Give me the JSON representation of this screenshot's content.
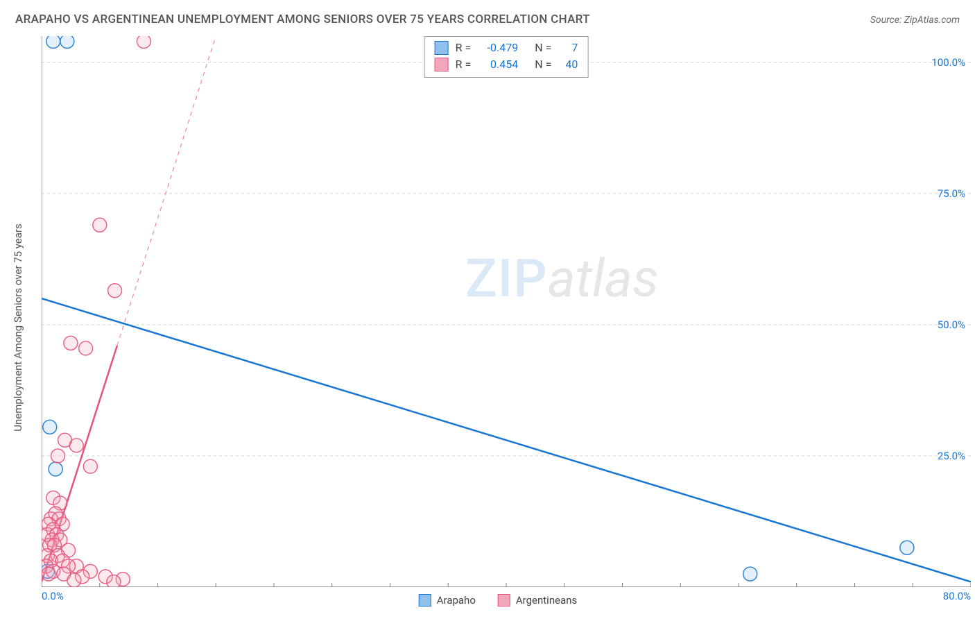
{
  "title": "ARAPAHO VS ARGENTINEAN UNEMPLOYMENT AMONG SENIORS OVER 75 YEARS CORRELATION CHART",
  "source": "Source: ZipAtlas.com",
  "y_axis_title": "Unemployment Among Seniors over 75 years",
  "watermark_zip": "ZIP",
  "watermark_atlas": "atlas",
  "chart": {
    "type": "scatter",
    "xlim": [
      0,
      80
    ],
    "ylim": [
      0,
      105
    ],
    "x_ticks": [
      0,
      80
    ],
    "x_tick_labels": [
      "0.0%",
      "80.0%"
    ],
    "x_minor_ticks_step": 5,
    "y_ticks": [
      25,
      50,
      75,
      100
    ],
    "y_tick_labels": [
      "25.0%",
      "50.0%",
      "75.0%",
      "100.0%"
    ],
    "grid_color": "#d4d4d4",
    "axis_color": "#808080",
    "background": "#ffffff",
    "point_radius": 10,
    "point_stroke_opacity": 0.9,
    "point_fill_opacity": 0.25,
    "series": [
      {
        "name": "Arapaho",
        "color": "#1976d2",
        "fill": "#8fc0ec",
        "trend": {
          "x1": 0,
          "y1": 55,
          "x2": 80,
          "y2": 1,
          "dash": false,
          "width": 2.5
        },
        "points": [
          {
            "x": 1.0,
            "y": 104
          },
          {
            "x": 2.2,
            "y": 104
          },
          {
            "x": 0.7,
            "y": 30.5
          },
          {
            "x": 1.2,
            "y": 22.5
          },
          {
            "x": 61.0,
            "y": 2.5
          },
          {
            "x": 74.5,
            "y": 7.5
          },
          {
            "x": 0.5,
            "y": 3.0
          }
        ]
      },
      {
        "name": "Argentineans",
        "color": "#e6537c",
        "fill": "#f2a6bb",
        "trend": {
          "x1": 0,
          "y1": 1,
          "x2": 6.5,
          "y2": 46,
          "dash": false,
          "width": 2.5
        },
        "trend_ext": {
          "x1": 6.5,
          "y1": 46,
          "x2": 15,
          "y2": 105,
          "dash": true,
          "width": 1.2
        },
        "points": [
          {
            "x": 8.8,
            "y": 104
          },
          {
            "x": 5.0,
            "y": 69
          },
          {
            "x": 6.3,
            "y": 56.5
          },
          {
            "x": 2.5,
            "y": 46.5
          },
          {
            "x": 3.8,
            "y": 45.5
          },
          {
            "x": 2.0,
            "y": 28
          },
          {
            "x": 3.0,
            "y": 27
          },
          {
            "x": 1.4,
            "y": 25
          },
          {
            "x": 4.2,
            "y": 23
          },
          {
            "x": 1.0,
            "y": 17
          },
          {
            "x": 1.6,
            "y": 16
          },
          {
            "x": 1.2,
            "y": 14
          },
          {
            "x": 0.8,
            "y": 13
          },
          {
            "x": 1.5,
            "y": 13
          },
          {
            "x": 0.6,
            "y": 12
          },
          {
            "x": 1.8,
            "y": 12
          },
          {
            "x": 1.0,
            "y": 11
          },
          {
            "x": 0.5,
            "y": 10
          },
          {
            "x": 1.3,
            "y": 10
          },
          {
            "x": 0.9,
            "y": 9
          },
          {
            "x": 1.6,
            "y": 9
          },
          {
            "x": 0.7,
            "y": 8
          },
          {
            "x": 1.1,
            "y": 8
          },
          {
            "x": 2.3,
            "y": 7
          },
          {
            "x": 0.5,
            "y": 6
          },
          {
            "x": 1.4,
            "y": 6
          },
          {
            "x": 0.8,
            "y": 5
          },
          {
            "x": 1.8,
            "y": 5
          },
          {
            "x": 3.0,
            "y": 4
          },
          {
            "x": 0.4,
            "y": 4
          },
          {
            "x": 2.3,
            "y": 4
          },
          {
            "x": 1.0,
            "y": 3
          },
          {
            "x": 4.2,
            "y": 3
          },
          {
            "x": 0.6,
            "y": 2.5
          },
          {
            "x": 1.9,
            "y": 2.5
          },
          {
            "x": 3.5,
            "y": 2
          },
          {
            "x": 5.5,
            "y": 2
          },
          {
            "x": 7.0,
            "y": 1.5
          },
          {
            "x": 2.8,
            "y": 1.3
          },
          {
            "x": 6.2,
            "y": 1.0
          }
        ]
      }
    ],
    "stats": [
      {
        "label1": "R =",
        "val1": "-0.479",
        "label2": "N =",
        "val2": "7"
      },
      {
        "label1": "R =",
        "val1": "0.454",
        "label2": "N =",
        "val2": "40"
      }
    ]
  },
  "legend": [
    {
      "label": "Arapaho"
    },
    {
      "label": "Argentineans"
    }
  ]
}
